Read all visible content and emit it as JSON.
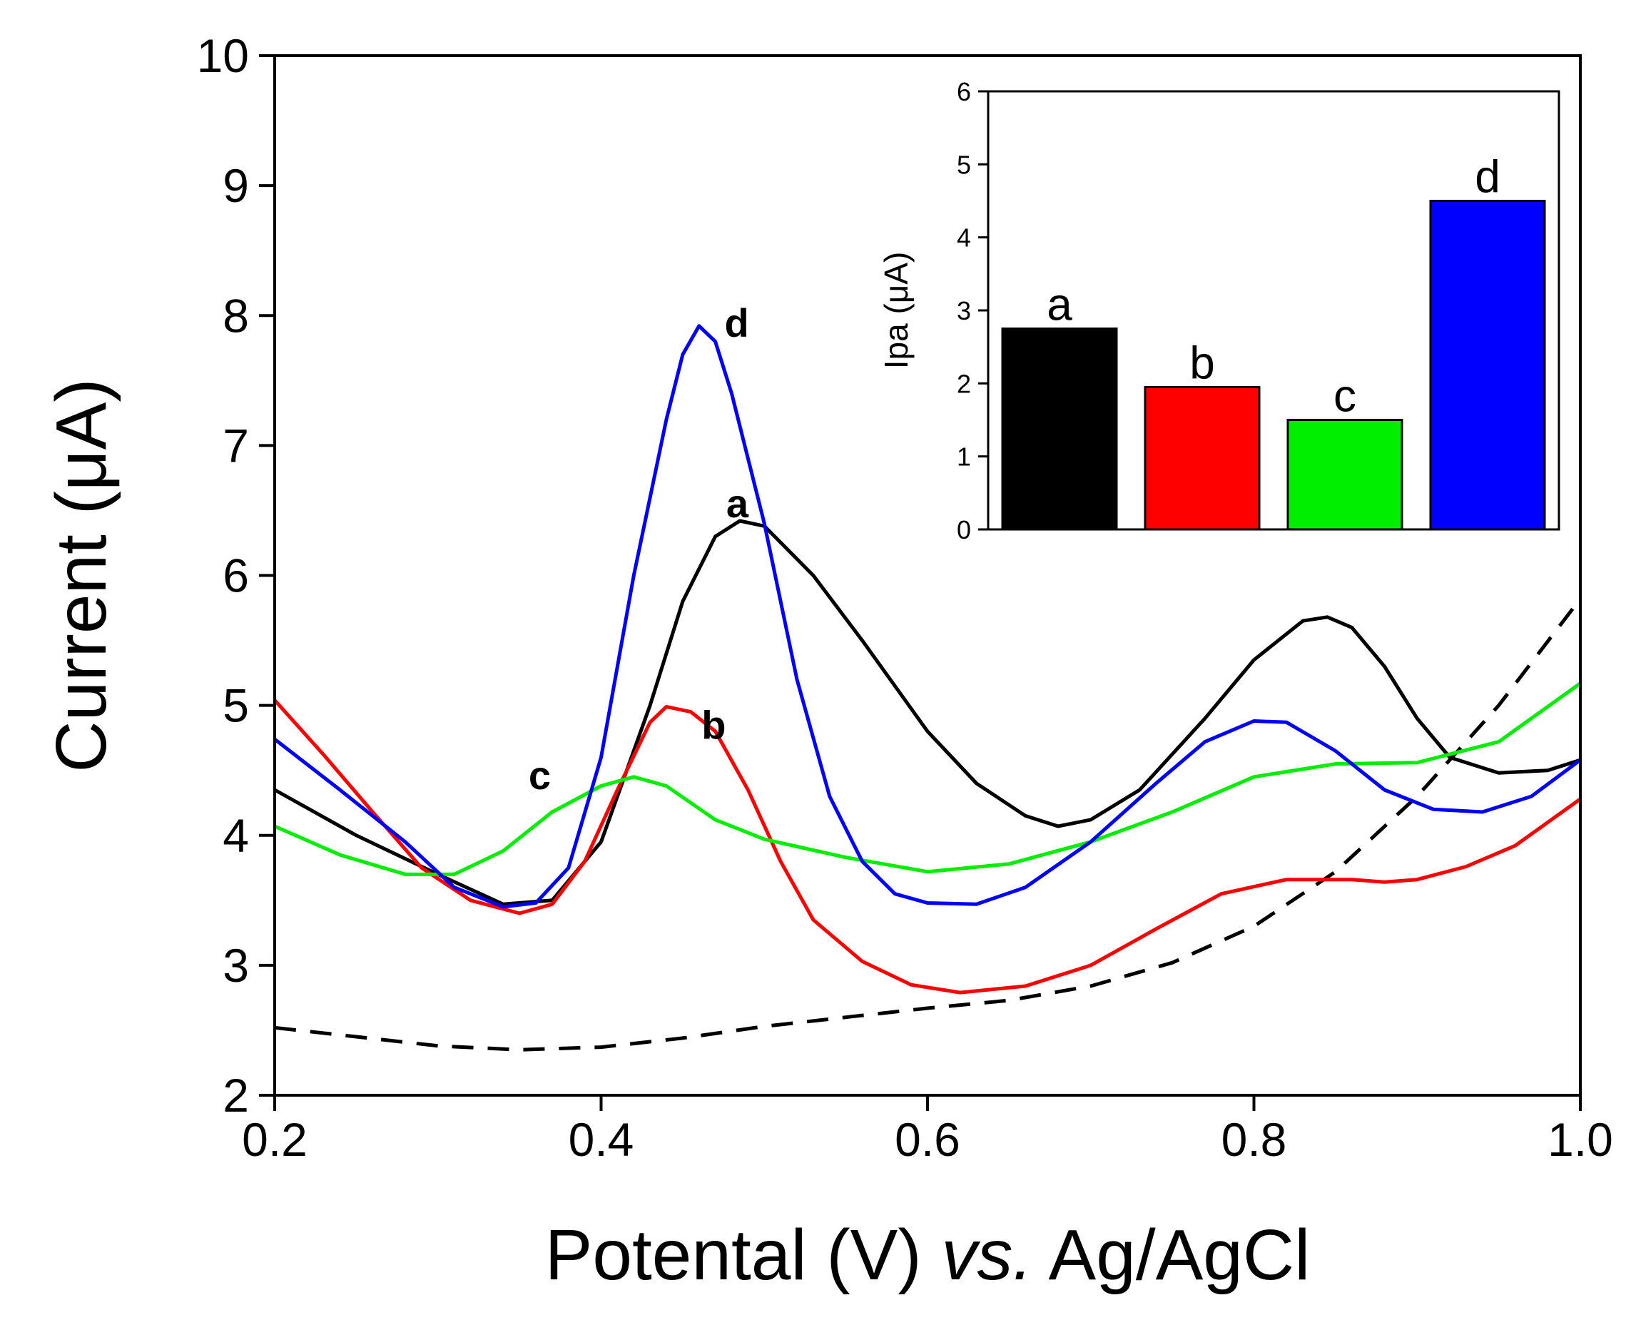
{
  "colors": {
    "a": "#000000",
    "b": "#ff0000",
    "c": "#00ee00",
    "d": "#0000ff",
    "blank": "#000000"
  },
  "chart_data": [
    {
      "type": "line",
      "xlabel_main": "Potental (V) ",
      "xlabel_italic": "vs.",
      "xlabel_tail": " Ag/AgCl",
      "ylabel": "Current (μA)",
      "xlim": [
        0.2,
        1.0
      ],
      "ylim": [
        2,
        10
      ],
      "xticks": [
        "0.2",
        "0.4",
        "0.6",
        "0.8",
        "1.0"
      ],
      "yticks": [
        "2",
        "3",
        "4",
        "5",
        "6",
        "7",
        "8",
        "9",
        "10"
      ],
      "series": [
        {
          "name": "blank",
          "label": "",
          "color": "#000000",
          "dashed": true,
          "points": [
            [
              0.2,
              2.52
            ],
            [
              0.25,
              2.45
            ],
            [
              0.3,
              2.38
            ],
            [
              0.35,
              2.35
            ],
            [
              0.4,
              2.37
            ],
            [
              0.45,
              2.44
            ],
            [
              0.5,
              2.53
            ],
            [
              0.55,
              2.6
            ],
            [
              0.6,
              2.67
            ],
            [
              0.65,
              2.73
            ],
            [
              0.7,
              2.84
            ],
            [
              0.75,
              3.02
            ],
            [
              0.8,
              3.3
            ],
            [
              0.85,
              3.72
            ],
            [
              0.9,
              4.3
            ],
            [
              0.95,
              5.0
            ],
            [
              1.0,
              5.82
            ]
          ]
        },
        {
          "name": "a",
          "label": "a",
          "color": "#000000",
          "dashed": false,
          "points": [
            [
              0.2,
              4.35
            ],
            [
              0.25,
              4.0
            ],
            [
              0.3,
              3.7
            ],
            [
              0.34,
              3.47
            ],
            [
              0.37,
              3.5
            ],
            [
              0.4,
              3.95
            ],
            [
              0.43,
              5.0
            ],
            [
              0.45,
              5.8
            ],
            [
              0.47,
              6.3
            ],
            [
              0.485,
              6.42
            ],
            [
              0.5,
              6.38
            ],
            [
              0.53,
              6.0
            ],
            [
              0.56,
              5.5
            ],
            [
              0.6,
              4.8
            ],
            [
              0.63,
              4.4
            ],
            [
              0.66,
              4.15
            ],
            [
              0.68,
              4.07
            ],
            [
              0.7,
              4.12
            ],
            [
              0.73,
              4.35
            ],
            [
              0.77,
              4.9
            ],
            [
              0.8,
              5.35
            ],
            [
              0.83,
              5.65
            ],
            [
              0.845,
              5.68
            ],
            [
              0.86,
              5.6
            ],
            [
              0.88,
              5.3
            ],
            [
              0.9,
              4.9
            ],
            [
              0.92,
              4.6
            ],
            [
              0.95,
              4.48
            ],
            [
              0.98,
              4.5
            ],
            [
              1.0,
              4.58
            ]
          ]
        },
        {
          "name": "b",
          "label": "b",
          "color": "#ff0000",
          "dashed": false,
          "points": [
            [
              0.2,
              5.04
            ],
            [
              0.23,
              4.62
            ],
            [
              0.26,
              4.18
            ],
            [
              0.29,
              3.75
            ],
            [
              0.32,
              3.5
            ],
            [
              0.35,
              3.4
            ],
            [
              0.37,
              3.47
            ],
            [
              0.39,
              3.8
            ],
            [
              0.41,
              4.35
            ],
            [
              0.43,
              4.87
            ],
            [
              0.44,
              4.99
            ],
            [
              0.455,
              4.95
            ],
            [
              0.47,
              4.8
            ],
            [
              0.49,
              4.35
            ],
            [
              0.51,
              3.8
            ],
            [
              0.53,
              3.35
            ],
            [
              0.56,
              3.03
            ],
            [
              0.59,
              2.85
            ],
            [
              0.62,
              2.79
            ],
            [
              0.66,
              2.84
            ],
            [
              0.7,
              3.0
            ],
            [
              0.74,
              3.28
            ],
            [
              0.78,
              3.55
            ],
            [
              0.82,
              3.66
            ],
            [
              0.86,
              3.66
            ],
            [
              0.88,
              3.64
            ],
            [
              0.9,
              3.66
            ],
            [
              0.93,
              3.76
            ],
            [
              0.96,
              3.92
            ],
            [
              1.0,
              4.28
            ]
          ]
        },
        {
          "name": "c",
          "label": "c",
          "color": "#00ee00",
          "dashed": false,
          "points": [
            [
              0.2,
              4.07
            ],
            [
              0.24,
              3.85
            ],
            [
              0.28,
              3.7
            ],
            [
              0.31,
              3.7
            ],
            [
              0.34,
              3.88
            ],
            [
              0.37,
              4.18
            ],
            [
              0.4,
              4.38
            ],
            [
              0.42,
              4.45
            ],
            [
              0.44,
              4.38
            ],
            [
              0.47,
              4.12
            ],
            [
              0.5,
              3.97
            ],
            [
              0.55,
              3.83
            ],
            [
              0.6,
              3.72
            ],
            [
              0.65,
              3.78
            ],
            [
              0.7,
              3.95
            ],
            [
              0.75,
              4.18
            ],
            [
              0.8,
              4.45
            ],
            [
              0.85,
              4.55
            ],
            [
              0.9,
              4.56
            ],
            [
              0.95,
              4.72
            ],
            [
              1.0,
              5.17
            ]
          ]
        },
        {
          "name": "d",
          "label": "d",
          "color": "#0000ff",
          "dashed": false,
          "points": [
            [
              0.2,
              4.74
            ],
            [
              0.24,
              4.35
            ],
            [
              0.28,
              3.95
            ],
            [
              0.31,
              3.6
            ],
            [
              0.34,
              3.45
            ],
            [
              0.36,
              3.48
            ],
            [
              0.38,
              3.75
            ],
            [
              0.4,
              4.6
            ],
            [
              0.42,
              6.0
            ],
            [
              0.44,
              7.2
            ],
            [
              0.45,
              7.7
            ],
            [
              0.46,
              7.92
            ],
            [
              0.47,
              7.8
            ],
            [
              0.48,
              7.4
            ],
            [
              0.5,
              6.4
            ],
            [
              0.52,
              5.2
            ],
            [
              0.54,
              4.3
            ],
            [
              0.56,
              3.8
            ],
            [
              0.58,
              3.55
            ],
            [
              0.6,
              3.48
            ],
            [
              0.63,
              3.47
            ],
            [
              0.66,
              3.6
            ],
            [
              0.7,
              3.95
            ],
            [
              0.74,
              4.4
            ],
            [
              0.77,
              4.72
            ],
            [
              0.8,
              4.88
            ],
            [
              0.82,
              4.87
            ],
            [
              0.85,
              4.65
            ],
            [
              0.88,
              4.35
            ],
            [
              0.91,
              4.2
            ],
            [
              0.94,
              4.18
            ],
            [
              0.97,
              4.3
            ],
            [
              1.0,
              4.58
            ]
          ]
        }
      ],
      "annotations": [
        {
          "text": "a",
          "x": 0.48,
          "y": 6.42
        },
        {
          "text": "b",
          "x": 0.455,
          "y": 4.99
        },
        {
          "text": "c",
          "x": 0.365,
          "y": 4.28
        },
        {
          "text": "d",
          "x": 0.47,
          "y": 7.92
        }
      ]
    },
    {
      "type": "bar",
      "ylabel": "Ipa (μA)",
      "ylim": [
        0,
        6
      ],
      "yticks": [
        "0",
        "1",
        "2",
        "3",
        "4",
        "5",
        "6"
      ],
      "categories": [
        "a",
        "b",
        "c",
        "d"
      ],
      "values": [
        2.75,
        1.95,
        1.5,
        4.5
      ],
      "colors": [
        "#000000",
        "#ff0000",
        "#00ee00",
        "#0000ff"
      ]
    }
  ]
}
